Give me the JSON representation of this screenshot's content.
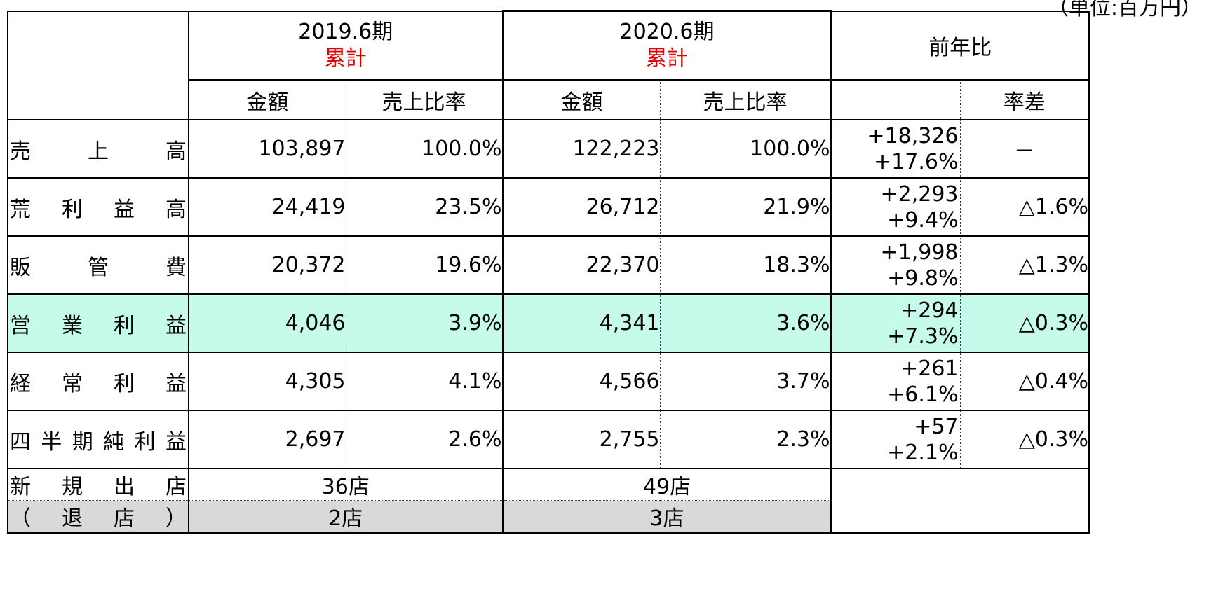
{
  "unit_note": "（単位:百万円）",
  "header": {
    "year2019": "2019.6期",
    "year2020": "2020.6期",
    "cumulative": "累計",
    "yoy": "前年比",
    "amount": "金額",
    "sales_ratio": "売上比率",
    "rate_diff": "率差"
  },
  "rows": [
    {
      "label": [
        "売",
        "上",
        "高"
      ],
      "amt19": "103,897",
      "rat19": "100.0%",
      "amt20": "122,223",
      "rat20": "100.0%",
      "diff": "+18,326",
      "diff_pct": "+17.6%",
      "rate_diff": "－"
    },
    {
      "label": [
        "荒",
        "利",
        "益",
        "高"
      ],
      "amt19": "24,419",
      "rat19": "23.5%",
      "amt20": "26,712",
      "rat20": "21.9%",
      "diff": "+2,293",
      "diff_pct": "+9.4%",
      "rate_diff": "△1.6%"
    },
    {
      "label": [
        "販",
        "管",
        "費"
      ],
      "amt19": "20,372",
      "rat19": "19.6%",
      "amt20": "22,370",
      "rat20": "18.3%",
      "diff": "+1,998",
      "diff_pct": "+9.8%",
      "rate_diff": "△1.3%"
    },
    {
      "label": [
        "営",
        "業",
        "利",
        "益"
      ],
      "amt19": "4,046",
      "rat19": "3.9%",
      "amt20": "4,341",
      "rat20": "3.6%",
      "diff": "+294",
      "diff_pct": "+7.3%",
      "rate_diff": "△0.3%"
    },
    {
      "label": [
        "経",
        "常",
        "利",
        "益"
      ],
      "amt19": "4,305",
      "rat19": "4.1%",
      "amt20": "4,566",
      "rat20": "3.7%",
      "diff": "+261",
      "diff_pct": "+6.1%",
      "rate_diff": "△0.4%"
    },
    {
      "label": [
        "四",
        "半",
        "期",
        "純",
        "利",
        "益"
      ],
      "amt19": "2,697",
      "rat19": "2.6%",
      "amt20": "2,755",
      "rat20": "2.3%",
      "diff": "+57",
      "diff_pct": "+2.1%",
      "rate_diff": "△0.3%"
    }
  ],
  "stores": {
    "new_label": [
      "新",
      "規",
      "出",
      "店"
    ],
    "new19": "36店",
    "new20": "49店",
    "closed_label": [
      "（",
      "退",
      "店",
      "）"
    ],
    "closed19": "2店",
    "closed20": "3店"
  },
  "colors": {
    "highlight_row": "#c6fbec",
    "closed_row": "#d9d9d9",
    "accent_red": "#e00000"
  }
}
